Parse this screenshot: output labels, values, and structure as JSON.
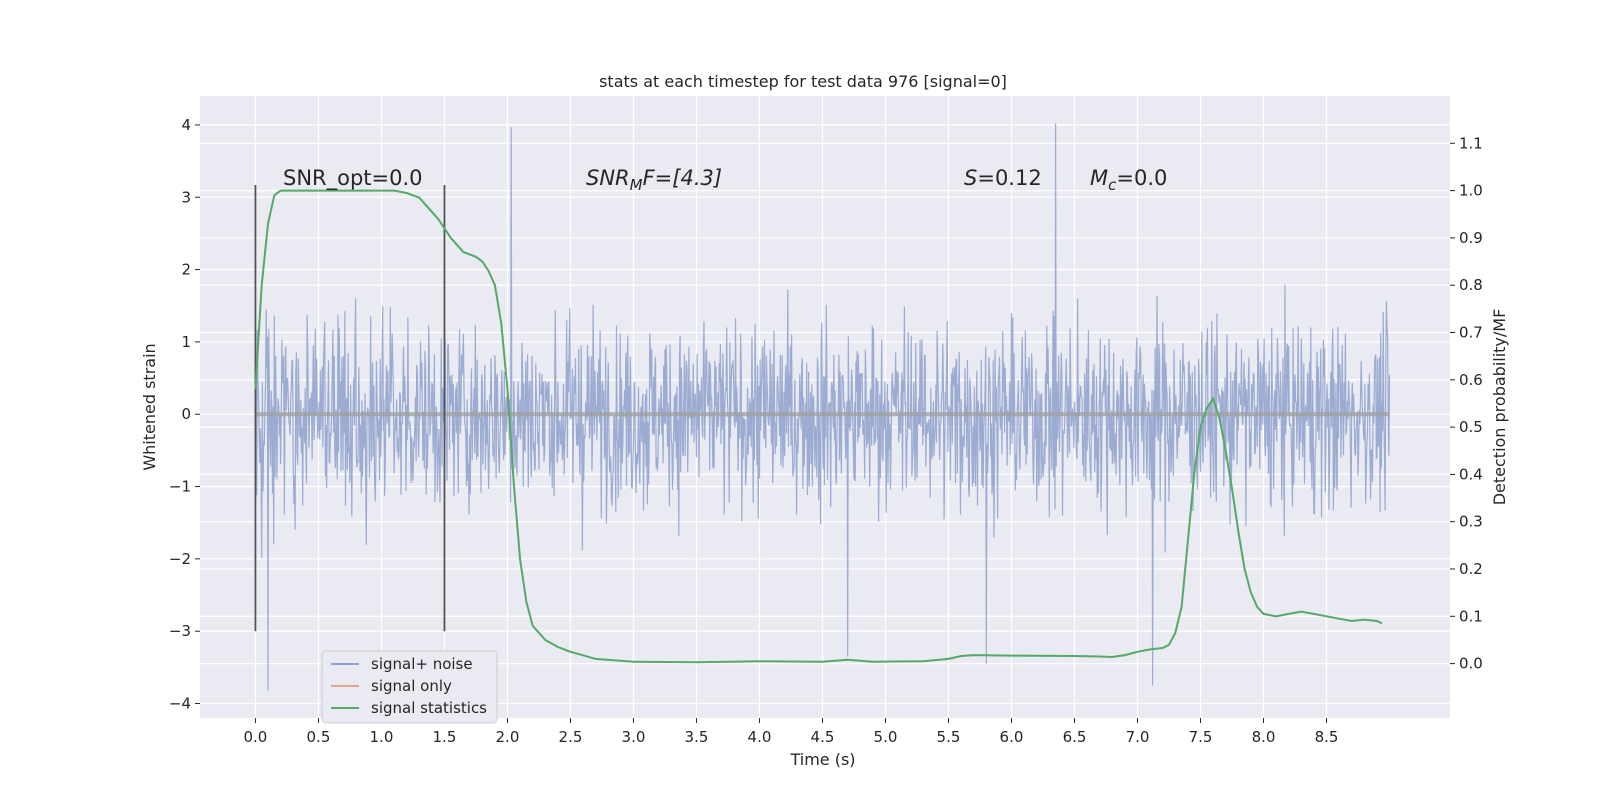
{
  "chart_data": {
    "type": "line",
    "title": "stats at each timestep for test data 976 [signal=0]",
    "xlabel": "Time (s)",
    "ylabel": "Whitened strain",
    "y2label": "Detection probability/MF",
    "xlim": [
      -0.44,
      9.48
    ],
    "ylim": [
      -4.2,
      4.4
    ],
    "y2lim": [
      -0.115,
      1.2
    ],
    "x_ticks": [
      0.0,
      0.5,
      1.0,
      1.5,
      2.0,
      2.5,
      3.0,
      3.5,
      4.0,
      4.5,
      5.0,
      5.5,
      6.0,
      6.5,
      7.0,
      7.5,
      8.0,
      8.5
    ],
    "x_tick_labels": [
      "0.0",
      "0.5",
      "1.0",
      "1.5",
      "2.0",
      "2.5",
      "3.0",
      "3.5",
      "4.0",
      "4.5",
      "5.0",
      "5.5",
      "6.0",
      "6.5",
      "7.0",
      "7.5",
      "8.0",
      "8.5"
    ],
    "y_ticks": [
      4,
      3,
      2,
      1,
      0,
      -1,
      -2,
      -3,
      -4
    ],
    "y_tick_labels": [
      "4",
      "3",
      "2",
      "1",
      "0",
      "−1",
      "−2",
      "−3",
      "−4"
    ],
    "y2_ticks": [
      1.1,
      1.0,
      0.9,
      0.8,
      0.7,
      0.6,
      0.5,
      0.4,
      0.3,
      0.2,
      0.1,
      0.0
    ],
    "y2_tick_labels": [
      "1.1",
      "1.0",
      "0.9",
      "0.8",
      "0.7",
      "0.6",
      "0.5",
      "0.4",
      "0.3",
      "0.2",
      "0.1",
      "0.0"
    ],
    "grid": true,
    "legend": {
      "placement": "lower-left",
      "entries": [
        {
          "label": "signal+ noise",
          "color": "#8da0cb"
        },
        {
          "label": "signal only",
          "color": "#e5a58a"
        },
        {
          "label": "signal statistics",
          "color": "#55a868"
        }
      ]
    },
    "annotations": {
      "snr_opt": "SNR_opt=0.0",
      "snr_mf_main": "SNR",
      "snr_mf_sub": "M",
      "snr_mf_rest": "F=[4.3]",
      "s_main": "S",
      "s_rest": "=0.12",
      "mc_main": "M",
      "mc_sub": "c",
      "mc_rest": "=0.0"
    },
    "vertical_markers": {
      "x": [
        0.0,
        1.5
      ],
      "y_range": [
        -3.0,
        3.17
      ]
    },
    "series": [
      {
        "name": "signal+ noise",
        "axis": "left",
        "color": "#8da0cb",
        "x_range": [
          0.0,
          9.0
        ],
        "typical_amplitude": 1.3,
        "max": 4.02,
        "min": -3.82,
        "notable_spikes": [
          [
            2.03,
            3.97
          ],
          [
            6.35,
            4.02
          ],
          [
            0.1,
            -3.82
          ],
          [
            7.12,
            -3.75
          ],
          [
            4.7,
            -3.35
          ],
          [
            5.8,
            -3.45
          ]
        ]
      },
      {
        "name": "signal only",
        "axis": "left",
        "color": "#e5a58a",
        "x": [
          0.0,
          9.0
        ],
        "y": [
          0.0,
          0.0
        ]
      },
      {
        "name": "signal statistics",
        "axis": "right",
        "color": "#55a868",
        "x": [
          0.0,
          0.05,
          0.1,
          0.15,
          0.2,
          0.3,
          0.5,
          0.8,
          1.0,
          1.1,
          1.2,
          1.3,
          1.35,
          1.45,
          1.55,
          1.65,
          1.75,
          1.8,
          1.85,
          1.9,
          1.95,
          2.0,
          2.05,
          2.1,
          2.15,
          2.2,
          2.3,
          2.4,
          2.5,
          2.7,
          3.0,
          3.5,
          4.0,
          4.5,
          4.7,
          4.9,
          5.3,
          5.5,
          5.6,
          5.7,
          6.0,
          6.5,
          6.7,
          6.8,
          6.9,
          7.0,
          7.1,
          7.2,
          7.25,
          7.3,
          7.35,
          7.4,
          7.45,
          7.5,
          7.55,
          7.6,
          7.65,
          7.7,
          7.75,
          7.8,
          7.85,
          7.9,
          7.95,
          8.0,
          8.1,
          8.2,
          8.3,
          8.4,
          8.5,
          8.6,
          8.7,
          8.8,
          8.9,
          8.94
        ],
        "y": [
          0.58,
          0.8,
          0.93,
          0.99,
          1.0,
          1.0,
          1.0,
          1.0,
          1.0,
          1.0,
          0.995,
          0.985,
          0.97,
          0.94,
          0.9,
          0.87,
          0.86,
          0.85,
          0.83,
          0.8,
          0.72,
          0.58,
          0.38,
          0.22,
          0.13,
          0.08,
          0.05,
          0.035,
          0.025,
          0.01,
          0.004,
          0.003,
          0.005,
          0.004,
          0.008,
          0.004,
          0.005,
          0.01,
          0.016,
          0.018,
          0.017,
          0.016,
          0.015,
          0.014,
          0.018,
          0.025,
          0.03,
          0.033,
          0.04,
          0.065,
          0.12,
          0.26,
          0.4,
          0.5,
          0.54,
          0.56,
          0.52,
          0.45,
          0.37,
          0.28,
          0.2,
          0.15,
          0.12,
          0.105,
          0.1,
          0.105,
          0.11,
          0.105,
          0.1,
          0.095,
          0.09,
          0.093,
          0.09,
          0.085
        ]
      }
    ]
  }
}
